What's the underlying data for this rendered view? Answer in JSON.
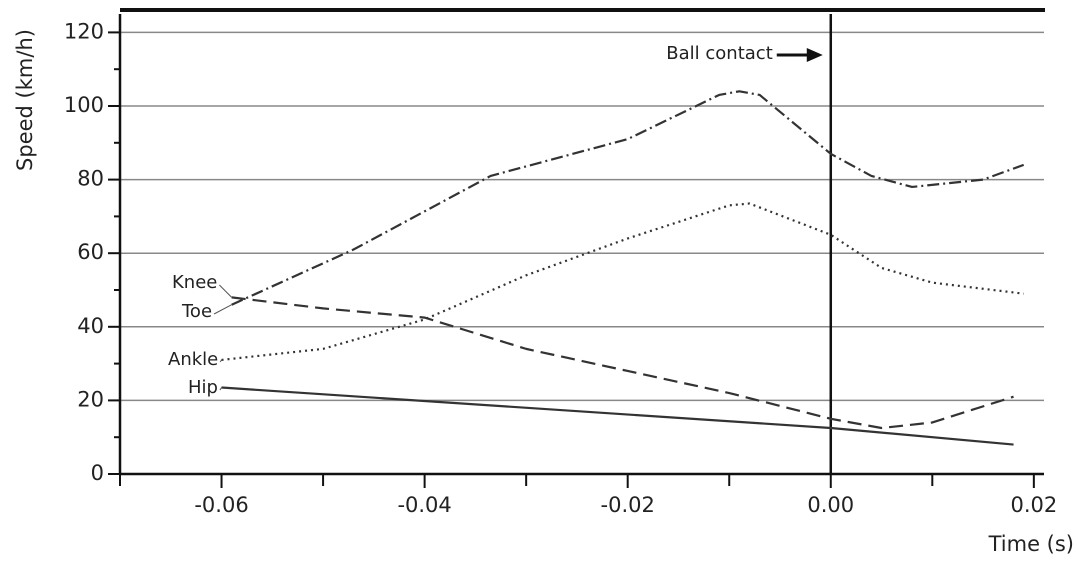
{
  "chart_data": {
    "type": "line",
    "xlabel": "Time (s)",
    "ylabel": "Speed (km/h)",
    "xlim": [
      -0.07,
      0.021
    ],
    "ylim": [
      0,
      125
    ],
    "xticks": [
      -0.06,
      -0.04,
      -0.02,
      {
        "value": 0,
        "label": "0.00"
      },
      0.02
    ],
    "x_minor_ticks": [
      -0.07,
      -0.05,
      -0.03,
      -0.01,
      0.01
    ],
    "yticks": [
      0,
      20,
      40,
      60,
      80,
      100,
      120
    ],
    "y_minor_ticks": [
      10,
      30,
      50,
      70,
      90,
      110
    ],
    "grid": true,
    "annotation": {
      "text": "Ball contact",
      "x": 0
    },
    "series": [
      {
        "name": "Knee",
        "color": "#333333",
        "dash": "14 7",
        "x": [
          -0.059,
          -0.05,
          -0.04,
          -0.03,
          -0.02,
          -0.01,
          0,
          0.005,
          0.01,
          0.018
        ],
        "values": [
          48,
          45,
          42.5,
          34,
          28,
          22,
          15,
          12.5,
          14,
          21
        ]
      },
      {
        "name": "Toe",
        "color": "#333333",
        "dash": "12 4 2 4",
        "x": [
          -0.059,
          -0.047,
          -0.0335,
          -0.02,
          -0.011,
          -0.009,
          -0.007,
          0,
          0.004,
          0.008,
          0.015,
          0.019
        ],
        "values": [
          46,
          61,
          81,
          91,
          103,
          104,
          103,
          87,
          81,
          78,
          80,
          84
        ]
      },
      {
        "name": "Ankle",
        "color": "#333333",
        "dash": "2 4",
        "x": [
          -0.06,
          -0.05,
          -0.04,
          -0.03,
          -0.02,
          -0.01,
          -0.008,
          0,
          0.005,
          0.01,
          0.019
        ],
        "values": [
          31,
          34,
          42,
          54,
          64,
          73,
          73.5,
          65,
          56,
          52,
          49
        ]
      },
      {
        "name": "Hip",
        "color": "#333333",
        "dash": "none",
        "x": [
          -0.06,
          0,
          0.018
        ],
        "values": [
          23.5,
          12.5,
          8
        ]
      }
    ]
  }
}
